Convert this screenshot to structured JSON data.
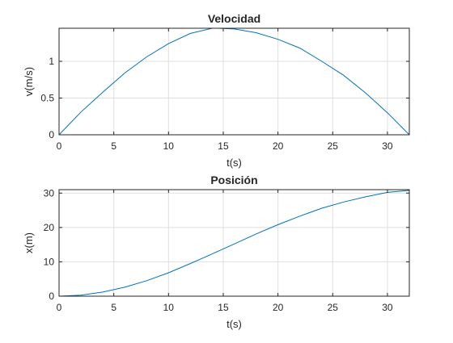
{
  "chart_data": [
    {
      "type": "line",
      "title": "Velocidad",
      "xlabel": "t(s)",
      "ylabel": "v(m/s)",
      "xlim": [
        0,
        32
      ],
      "ylim": [
        0,
        1.45
      ],
      "xticks": [
        "0",
        "5",
        "10",
        "15",
        "20",
        "25",
        "30"
      ],
      "yticks": [
        "0",
        "0.5",
        "1"
      ],
      "grid": true,
      "color": "#0072BD",
      "series": [
        {
          "x": [
            0,
            2,
            4,
            6,
            8,
            10,
            12,
            14,
            14.5,
            16,
            18,
            20,
            22,
            24,
            26,
            28,
            30,
            32
          ],
          "y": [
            0,
            0.31,
            0.58,
            0.84,
            1.06,
            1.24,
            1.38,
            1.45,
            1.45,
            1.44,
            1.39,
            1.3,
            1.18,
            1.0,
            0.81,
            0.57,
            0.3,
            0.0
          ]
        }
      ]
    },
    {
      "type": "line",
      "title": "Posición",
      "xlabel": "t(s)",
      "ylabel": "x(m)",
      "xlim": [
        0,
        32
      ],
      "ylim": [
        0,
        31
      ],
      "xticks": [
        "0",
        "5",
        "10",
        "15",
        "20",
        "25",
        "30"
      ],
      "yticks": [
        "0",
        "10",
        "20",
        "30"
      ],
      "grid": true,
      "color": "#0072BD",
      "series": [
        {
          "x": [
            0,
            2,
            4,
            6,
            8,
            10,
            12,
            14,
            16,
            18,
            20,
            22,
            24,
            26,
            28,
            30,
            32
          ],
          "y": [
            0,
            0.3,
            1.2,
            2.6,
            4.5,
            6.8,
            9.5,
            12.3,
            15.2,
            18.1,
            20.8,
            23.3,
            25.6,
            27.4,
            28.9,
            30.2,
            30.8
          ]
        }
      ]
    }
  ]
}
